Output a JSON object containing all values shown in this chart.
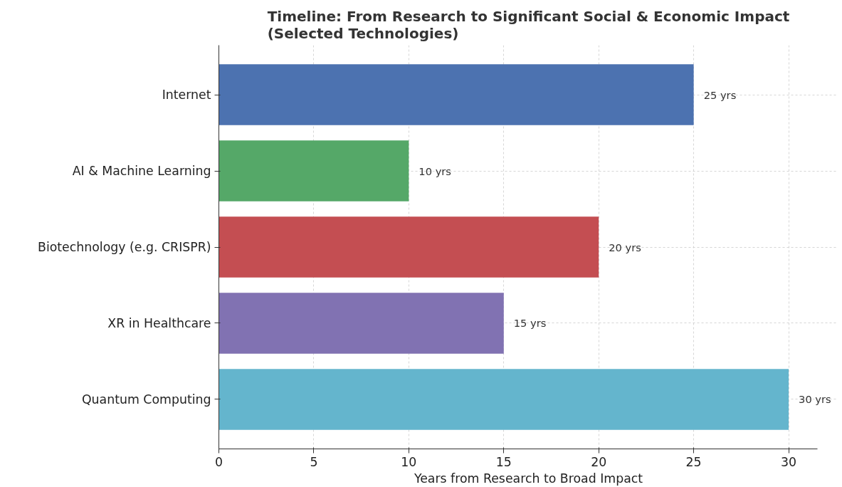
{
  "chart_data": {
    "type": "bar",
    "orientation": "horizontal",
    "title": "Timeline: From Research to Significant Social & Economic Impact\n(Selected Technologies)",
    "xlabel": "Years from Research to Broad Impact",
    "categories": [
      "Internet",
      "AI & Machine Learning",
      "Biotechnology (e.g. CRISPR)",
      "XR in Healthcare",
      "Quantum Computing"
    ],
    "values": [
      25,
      10,
      20,
      15,
      30
    ],
    "colors": [
      "#4c72b0",
      "#55a868",
      "#c44e52",
      "#8172b2",
      "#64b5cd"
    ],
    "value_labels": [
      "25 yrs",
      "10 yrs",
      "20 yrs",
      "15 yrs",
      "30 yrs"
    ],
    "xlim": [
      0,
      31.5
    ],
    "xticks": [
      0,
      5,
      10,
      15,
      20,
      25,
      30
    ],
    "grid": true
  }
}
